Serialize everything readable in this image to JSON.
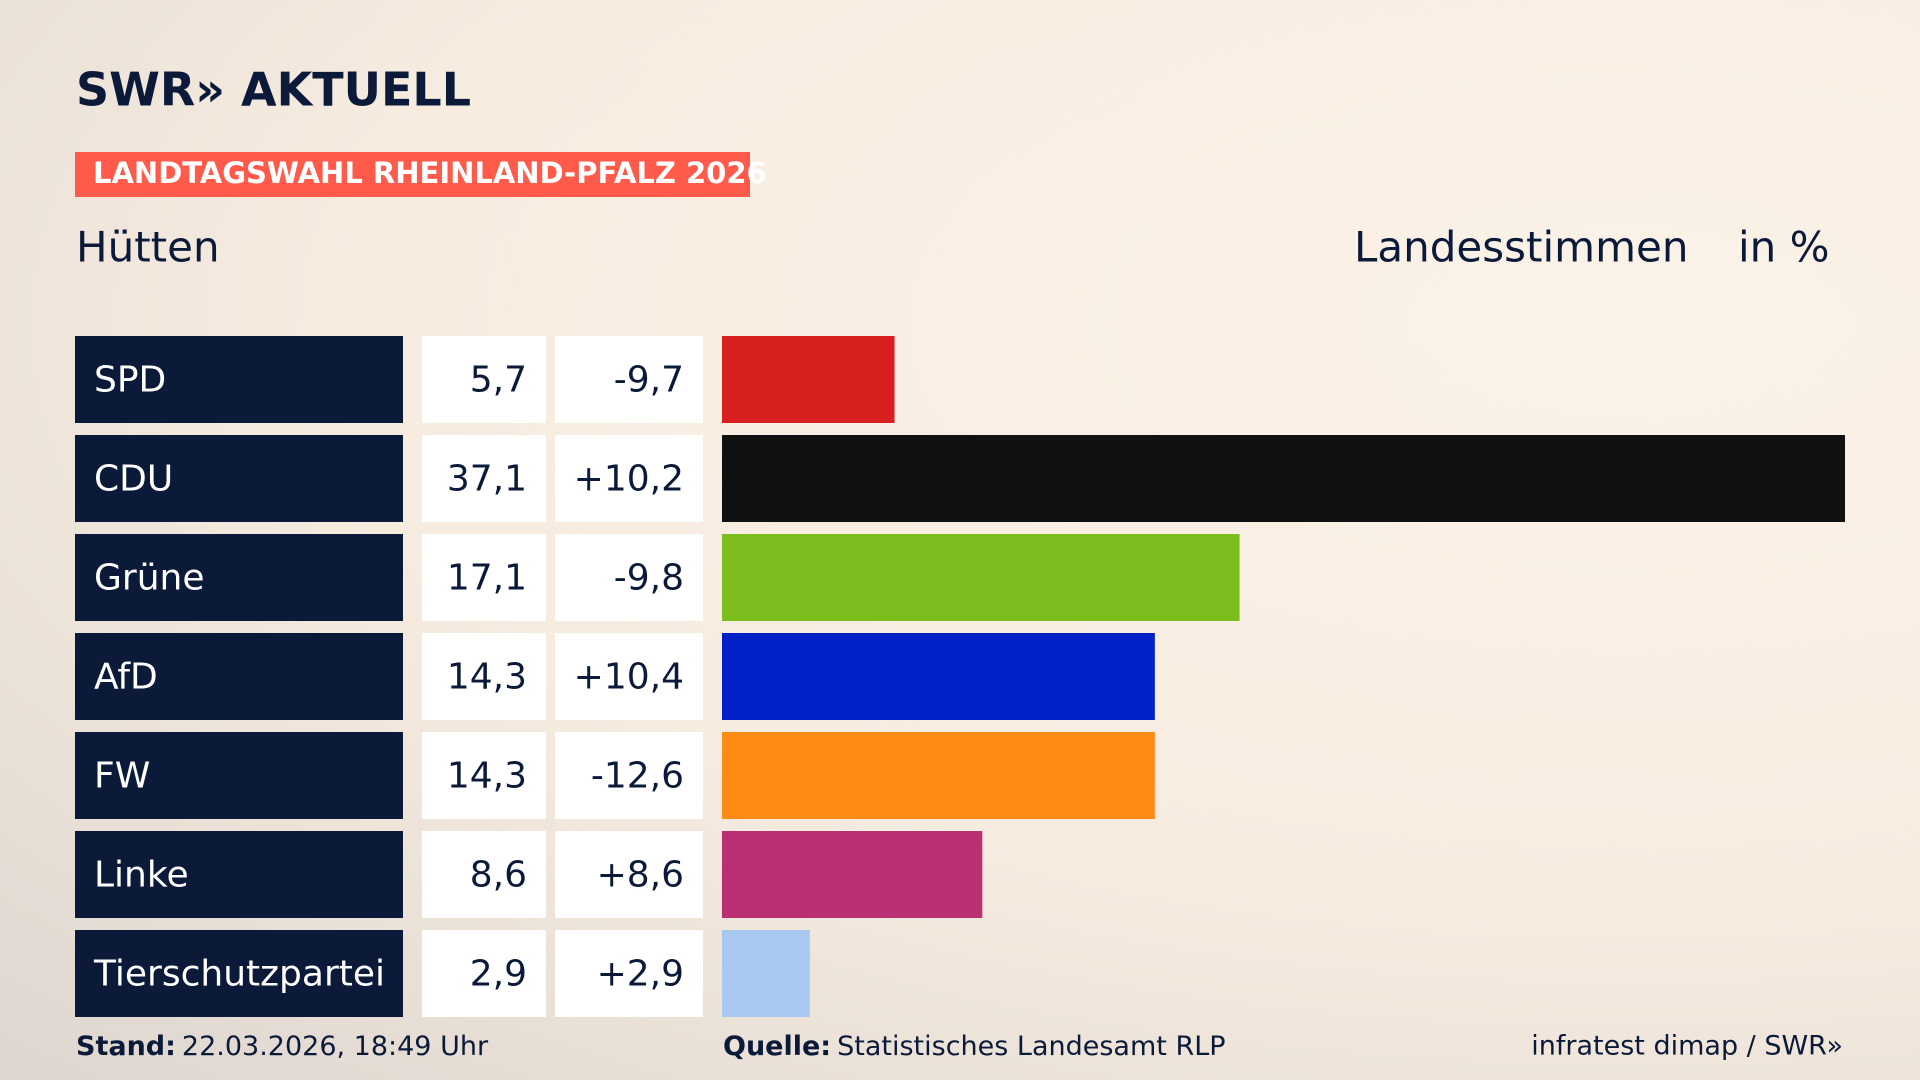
{
  "logo": "SWR» AKTUELL",
  "banner": "LANDTAGSWAHL RHEINLAND-PFALZ 2026",
  "chart_data": {
    "type": "bar",
    "title": "Hütten",
    "value_heading": "Landesstimmen",
    "unit": "in %",
    "categories": [
      "SPD",
      "CDU",
      "Grüne",
      "AfD",
      "FW",
      "Linke",
      "Tierschutzpartei"
    ],
    "values": [
      5.7,
      37.1,
      17.1,
      14.3,
      14.3,
      8.6,
      2.9
    ],
    "value_labels": [
      "5,7",
      "37,1",
      "17,1",
      "14,3",
      "14,3",
      "8,6",
      "2,9"
    ],
    "changes": [
      -9.7,
      10.2,
      -9.8,
      10.4,
      -12.6,
      8.6,
      2.9
    ],
    "change_labels": [
      "-9,7",
      "+10,2",
      "-9,8",
      "+10,4",
      "-12,6",
      "+8,6",
      "+2,9"
    ],
    "colors": [
      "#d7201f",
      "#111111",
      "#7bbd1d",
      "#0021c8",
      "#ff8b17",
      "#bb3072",
      "#a9c8f0"
    ],
    "xlim": [
      0,
      37.1
    ]
  },
  "footer": {
    "stand_label": "Stand:",
    "stand": "22.03.2026, 18:49 Uhr",
    "source_label": "Quelle:",
    "source": "Statistisches Landesamt RLP",
    "credit": "infratest dimap / SWR»"
  }
}
